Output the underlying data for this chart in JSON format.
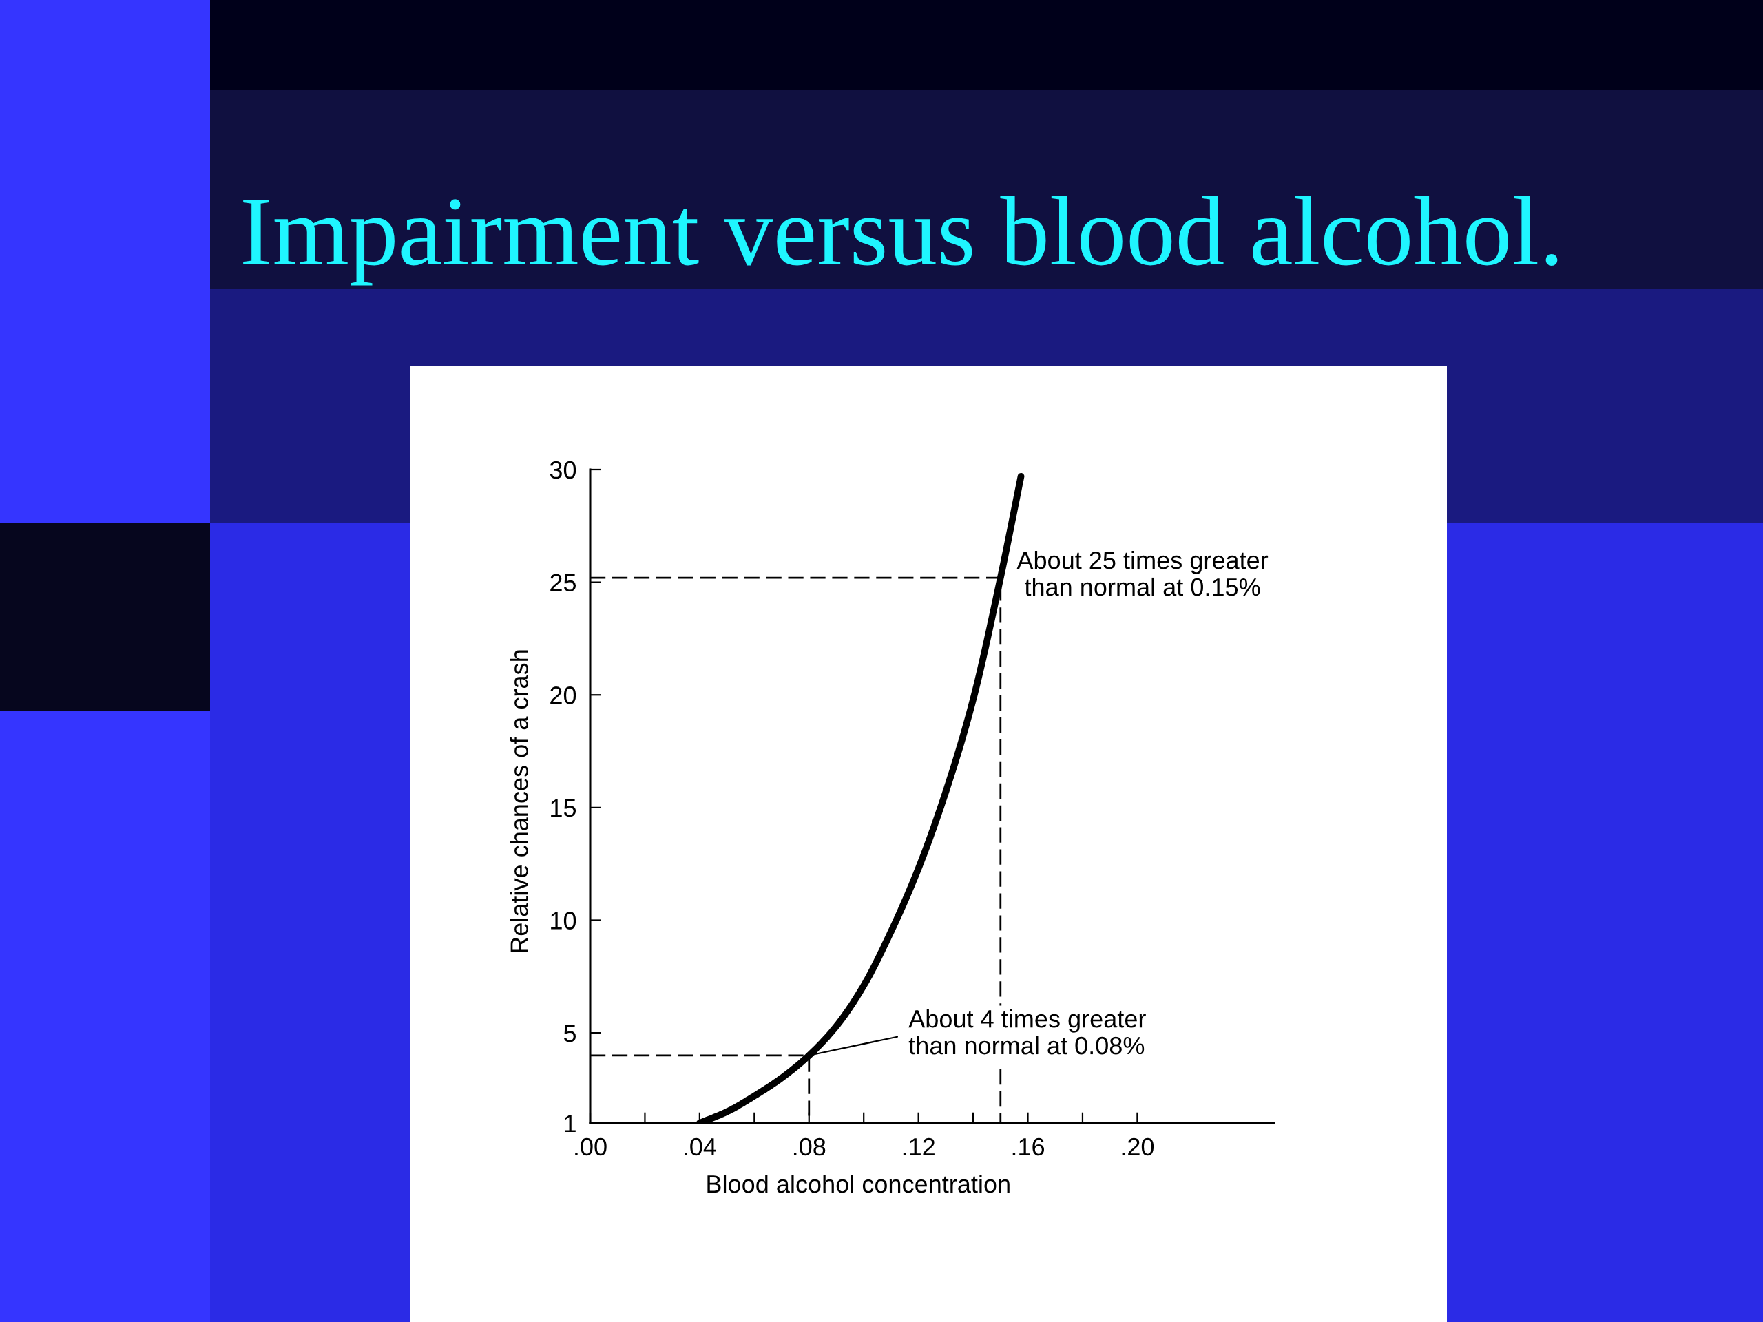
{
  "chart_data": {
    "type": "line",
    "title": "Impairment versus blood alcohol.",
    "xlabel": "Blood alcohol concentration",
    "ylabel": "Relative chances of a crash",
    "series": [
      {
        "x": [
          0.04,
          0.05,
          0.06,
          0.07,
          0.08,
          0.09,
          0.1,
          0.11,
          0.12,
          0.13,
          0.14,
          0.15,
          0.1575
        ],
        "values": [
          1,
          1.5,
          2.2,
          3.0,
          4.0,
          5.3,
          7.1,
          9.5,
          12.3,
          15.7,
          19.8,
          25.2,
          29.7
        ],
        "color": "#000000",
        "line_style": "solid"
      },
      {
        "x": [
          0,
          0.08,
          0.08
        ],
        "values": [
          4.0,
          4.0,
          1
        ],
        "color": "#000000",
        "line_style": "dashed"
      },
      {
        "x": [
          0,
          0.15,
          0.15
        ],
        "values": [
          25.2,
          25.2,
          1
        ],
        "color": "#000000",
        "line_style": "dashed"
      }
    ],
    "xlim": [
      0,
      0.25
    ],
    "ylim": [
      1,
      30
    ],
    "xticks": [
      {
        "value": 0,
        "label": ".00"
      },
      {
        "value": 0.02,
        "label": null
      },
      {
        "value": 0.04,
        "label": ".04"
      },
      {
        "value": 0.06,
        "label": null
      },
      {
        "value": 0.08,
        "label": ".08"
      },
      {
        "value": 0.1,
        "label": null
      },
      {
        "value": 0.12,
        "label": ".12"
      },
      {
        "value": 0.14,
        "label": null
      },
      {
        "value": 0.16,
        "label": ".16"
      },
      {
        "value": 0.18,
        "label": null
      },
      {
        "value": 0.2,
        "label": ".20"
      }
    ],
    "yticks": [
      1,
      5,
      10,
      15,
      20,
      25,
      30
    ],
    "annotations": [
      {
        "text": "About 25 times greater\nthan normal at 0.15%",
        "x": 0.15,
        "y": 25.2
      },
      {
        "text": "About 4 times greater\nthan normal at 0.08%",
        "x": 0.08,
        "y": 4.0
      }
    ],
    "grid": false,
    "marker": "none"
  }
}
